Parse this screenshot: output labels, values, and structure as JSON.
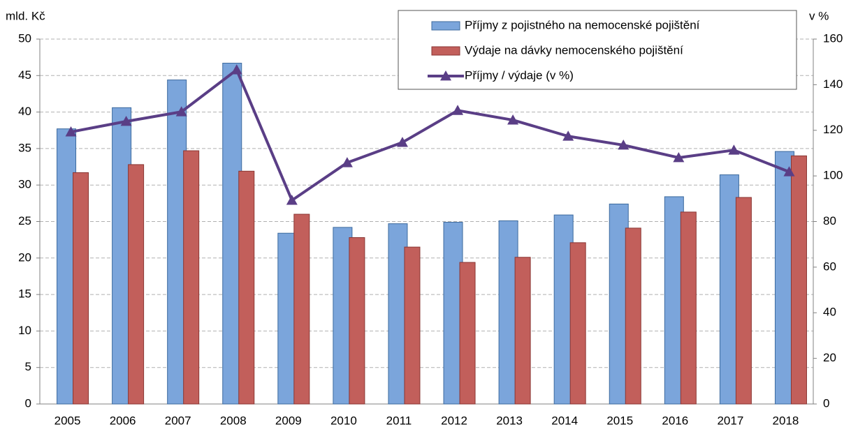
{
  "chart_data": {
    "type": "bar",
    "y_label": "mld. Kč",
    "y2_label": "v %",
    "categories": [
      "2005",
      "2006",
      "2007",
      "2008",
      "2009",
      "2010",
      "2011",
      "2012",
      "2013",
      "2014",
      "2015",
      "2016",
      "2017",
      "2018"
    ],
    "series": [
      {
        "name": "Příjmy z pojistného na nemocenské pojištění",
        "color": "#7ba5db",
        "border": "#3c6a9e",
        "type": "bar",
        "values": [
          37.7,
          40.6,
          44.4,
          46.7,
          23.4,
          24.2,
          24.7,
          24.9,
          25.1,
          25.9,
          27.4,
          28.4,
          31.4,
          34.6
        ]
      },
      {
        "name": "Výdaje na dávky nemocenského pojištění",
        "color": "#c25f5b",
        "border": "#8a3633",
        "type": "bar",
        "values": [
          31.7,
          32.8,
          34.7,
          31.9,
          26.0,
          22.8,
          21.5,
          19.4,
          20.1,
          22.1,
          24.1,
          26.3,
          28.3,
          34.0
        ]
      },
      {
        "name": "Příjmy / výdaje (v %)",
        "color": "#5a3e86",
        "type": "line",
        "axis": "y2",
        "values": [
          119.3,
          123.9,
          128.1,
          146.5,
          89.3,
          105.8,
          114.7,
          128.7,
          124.5,
          117.4,
          113.5,
          108.0,
          111.3,
          101.8
        ]
      }
    ],
    "ylim": [
      0,
      50
    ],
    "yticks": [
      0,
      5,
      10,
      15,
      20,
      25,
      30,
      35,
      40,
      45,
      50
    ],
    "y2lim": [
      0,
      160
    ],
    "y2ticks": [
      0,
      20,
      40,
      60,
      80,
      100,
      120,
      140,
      160
    ],
    "grid": true,
    "legend": "top-right"
  }
}
